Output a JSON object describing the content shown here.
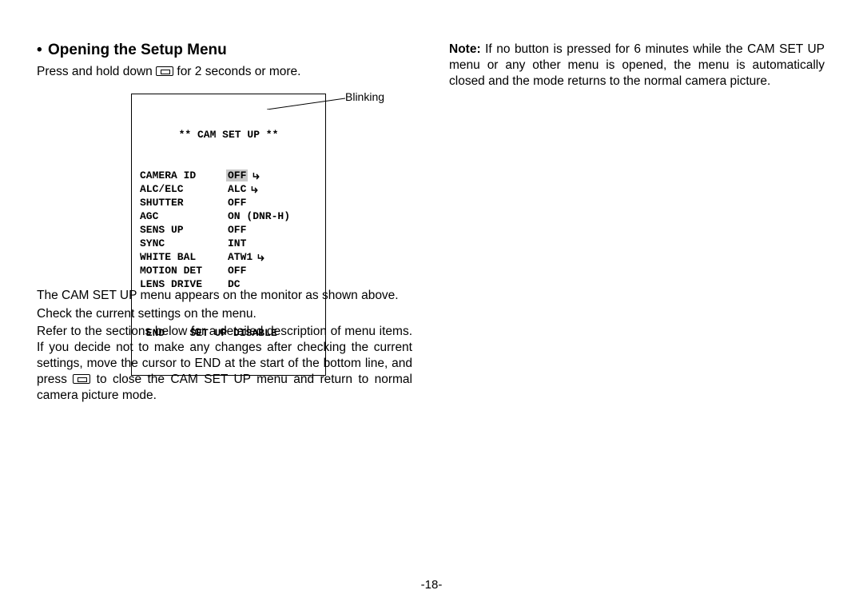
{
  "heading_bullet": "•",
  "heading": "Opening the Setup Menu",
  "intro_pre": "Press and hold down ",
  "intro_post": " for 2 seconds or more.",
  "osd": {
    "title": "** CAM SET UP **",
    "rows": [
      {
        "k": "CAMERA ID",
        "v": "OFF",
        "hl": true,
        "sub": true
      },
      {
        "k": "ALC/ELC",
        "v": "ALC",
        "hl": false,
        "sub": true
      },
      {
        "k": "SHUTTER",
        "v": "OFF",
        "hl": false,
        "sub": false
      },
      {
        "k": "AGC",
        "v": "ON (DNR-H)",
        "hl": false,
        "sub": false
      },
      {
        "k": "SENS UP",
        "v": "OFF",
        "hl": false,
        "sub": false
      },
      {
        "k": "SYNC",
        "v": "INT",
        "hl": false,
        "sub": false
      },
      {
        "k": "WHITE BAL",
        "v": "ATW1",
        "hl": false,
        "sub": true
      },
      {
        "k": "MOTION DET",
        "v": "OFF",
        "hl": false,
        "sub": false
      },
      {
        "k": "LENS DRIVE",
        "v": "DC",
        "hl": false,
        "sub": false
      }
    ],
    "footer": " END    SET UP DISABLE"
  },
  "callout": "Blinking",
  "body_p1": "The CAM SET UP menu appears on the monitor as shown above.",
  "body_p2": "Check the current settings on the menu.",
  "body_p3_pre": "Refer to the sections below for a detailed description of menu items. If you decide not to make any changes after checking the current settings, move the cursor to END at the start of the bottom line, and press ",
  "body_p3_post": " to close the CAM SET UP menu and return to normal cam­era picture mode.",
  "note_lead": "Note:",
  "note_body": " If no button is pressed for 6 minutes while the CAM SET UP menu or any other menu is opened, the menu is automatically closed and the mode returns to the normal camera picture.",
  "page_number": "-18-",
  "colors": {
    "text": "#000000",
    "bg": "#ffffff",
    "highlight": "#c8c8c8"
  }
}
